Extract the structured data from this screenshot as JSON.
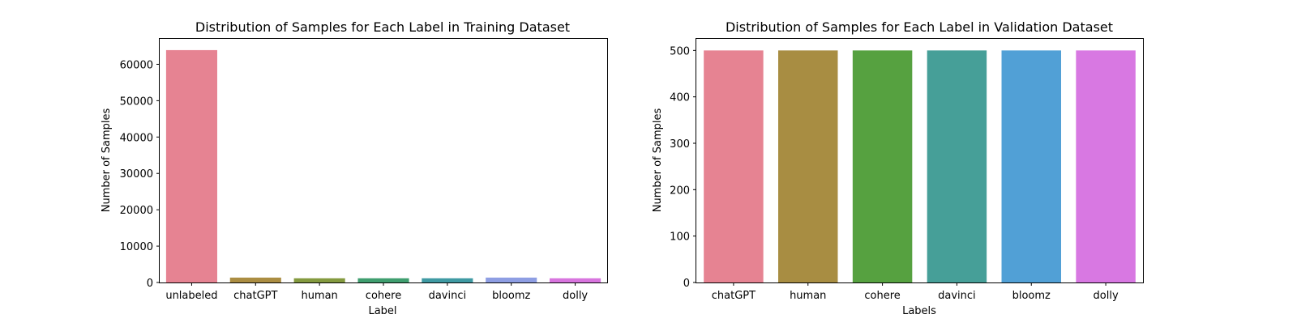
{
  "chart_data": [
    {
      "type": "bar",
      "title": "Distribution of Samples for Each Label in Training Dataset",
      "xlabel": "Label",
      "ylabel": "Number of Samples",
      "categories": [
        "unlabeled",
        "chatGPT",
        "human",
        "cohere",
        "davinci",
        "bloomz",
        "dolly"
      ],
      "values": [
        63900,
        1340,
        1150,
        1150,
        1150,
        1340,
        1150
      ],
      "colors": [
        "#e68392",
        "#ab8d42",
        "#849a3f",
        "#3f9e6f",
        "#3f9aa3",
        "#8e9ee3",
        "#d875de"
      ],
      "ylim": [
        0,
        67000
      ],
      "yticks": [
        0,
        10000,
        20000,
        30000,
        40000,
        50000,
        60000
      ],
      "grid": false
    },
    {
      "type": "bar",
      "title": "Distribution of Samples for Each Label in Validation Dataset",
      "xlabel": "Labels",
      "ylabel": "Number of Samples",
      "categories": [
        "chatGPT",
        "human",
        "cohere",
        "davinci",
        "bloomz",
        "dolly"
      ],
      "values": [
        500,
        500,
        500,
        500,
        500,
        500
      ],
      "colors": [
        "#e68392",
        "#a88d42",
        "#56a140",
        "#469f98",
        "#51a0d6",
        "#d878e2"
      ],
      "ylim": [
        0,
        525
      ],
      "yticks": [
        0,
        100,
        200,
        300,
        400,
        500
      ],
      "grid": false
    }
  ]
}
